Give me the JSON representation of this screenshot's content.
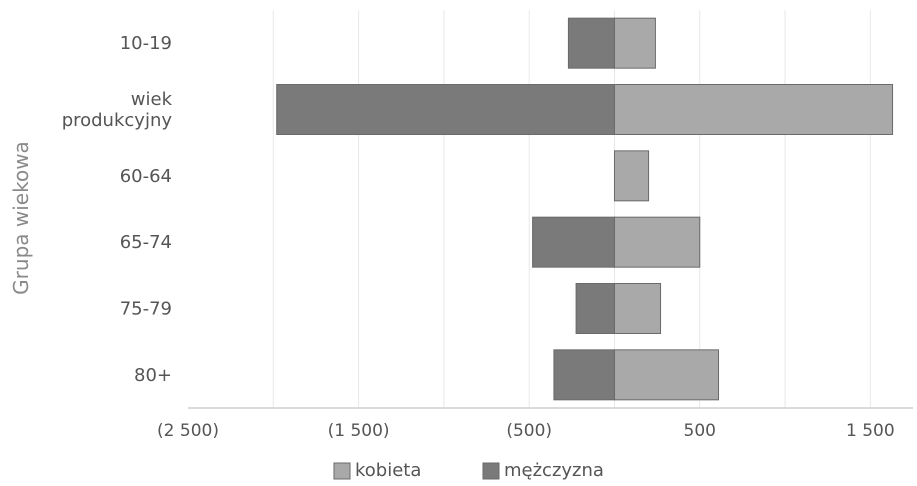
{
  "chart_data": {
    "type": "bar",
    "orientation": "horizontal",
    "stacked": "diverging",
    "ylabel": "Grupa wiekowa",
    "xlabel": "",
    "categories": [
      "10-19",
      "wiek produkcyjny",
      "60-64",
      "65-74",
      "75-79",
      "80+"
    ],
    "category_lines": [
      [
        "10-19"
      ],
      [
        "wiek",
        "produkcyjny"
      ],
      [
        "60-64"
      ],
      [
        "65-74"
      ],
      [
        "75-79"
      ],
      [
        "80+"
      ]
    ],
    "series": [
      {
        "name": "kobieta",
        "values": [
          240,
          1630,
          200,
          500,
          270,
          610
        ],
        "color": "#a9a9a9"
      },
      {
        "name": "mężczyzna",
        "values": [
          -270,
          -1980,
          0,
          -480,
          -225,
          -355
        ],
        "color": "#7a7a7a"
      }
    ],
    "xlim": [
      -2500,
      1750
    ],
    "xticks": [
      -2500,
      -1500,
      -500,
      500,
      1500
    ],
    "xtick_labels": [
      "(2 500)",
      "(1 500)",
      "(500)",
      "500",
      "1 500"
    ],
    "grid": true,
    "legend": "bottom"
  }
}
